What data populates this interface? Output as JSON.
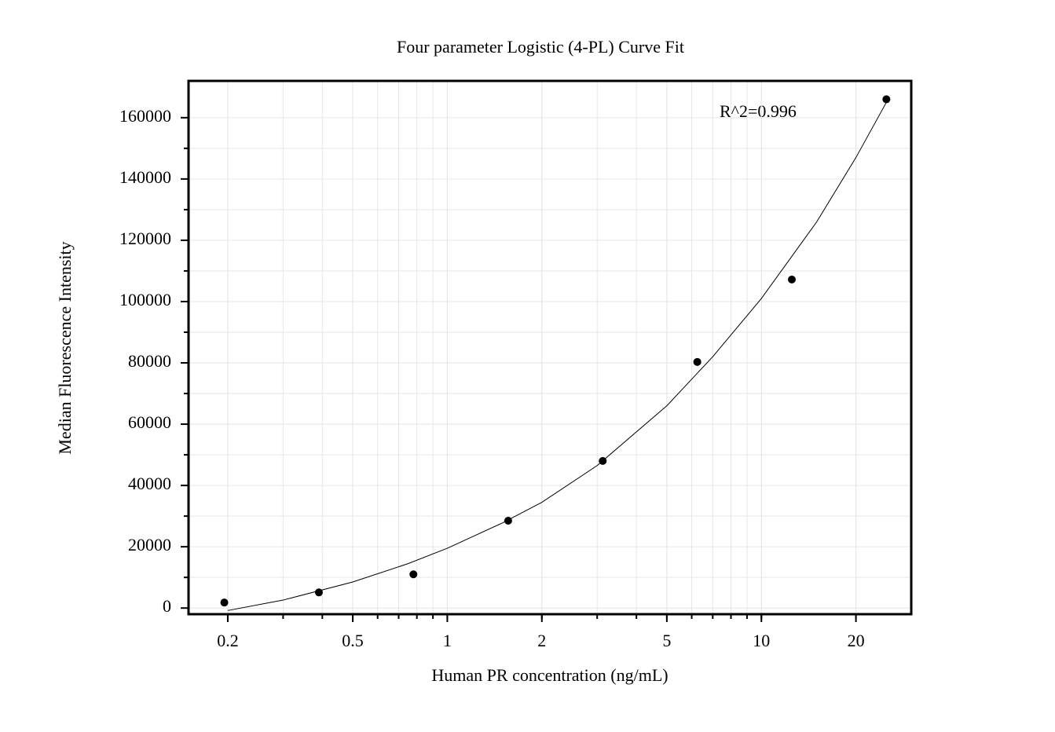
{
  "chart_data": {
    "type": "scatter",
    "title": "Four parameter Logistic (4-PL) Curve Fit",
    "x_label": "Human PR concentration (ng/mL)",
    "y_label": "Median Fluorescence Intensity",
    "annotation": "R^2=0.996",
    "x_log_scale": true,
    "grid": true,
    "xlim": [
      0.15,
      30
    ],
    "xticks": [
      0.2,
      0.5,
      1,
      2,
      5,
      10,
      20
    ],
    "ylim": [
      -2000,
      172000
    ],
    "yticks": [
      0,
      20000,
      40000,
      60000,
      80000,
      100000,
      120000,
      140000,
      160000
    ],
    "series": [
      {
        "color": "#000000",
        "x": [
          0.195,
          0.39,
          0.78,
          1.5625,
          3.125,
          6.25,
          12.5,
          25
        ],
        "values": [
          1800,
          5100,
          11000,
          28500,
          48000,
          80300,
          107200,
          166000
        ]
      }
    ],
    "fit_curve": {
      "color": "#000000",
      "x": [
        0.2,
        0.3,
        0.5,
        0.75,
        1,
        1.5,
        2,
        3,
        5,
        7,
        10,
        15,
        20,
        25
      ],
      "values": [
        -800,
        2600,
        8500,
        14500,
        19500,
        27800,
        34500,
        46500,
        66000,
        82000,
        101000,
        126000,
        147000,
        165000
      ]
    }
  }
}
